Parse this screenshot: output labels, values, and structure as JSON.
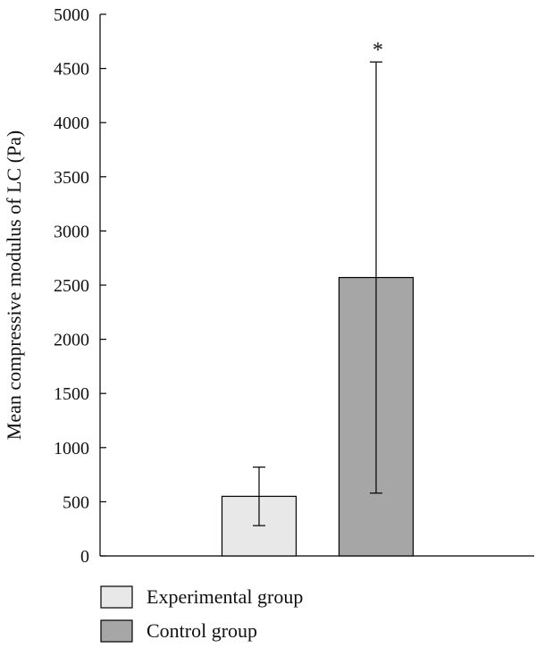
{
  "chart_data": {
    "type": "bar",
    "title": "",
    "xlabel": "",
    "ylabel": "Mean compressive modulus of LC (Pa)",
    "ylim": [
      0,
      5000
    ],
    "yticks": [
      0,
      500,
      1000,
      1500,
      2000,
      2500,
      3000,
      3500,
      4000,
      4500,
      5000
    ],
    "grid": false,
    "legend": "bottom",
    "series": [
      {
        "name": "Experimental group",
        "value": 550,
        "error": 270,
        "color": "#e8e8e8",
        "annotation": ""
      },
      {
        "name": "Control group",
        "value": 2570,
        "error": 1990,
        "color": "#a6a6a6",
        "annotation": "*"
      }
    ]
  }
}
